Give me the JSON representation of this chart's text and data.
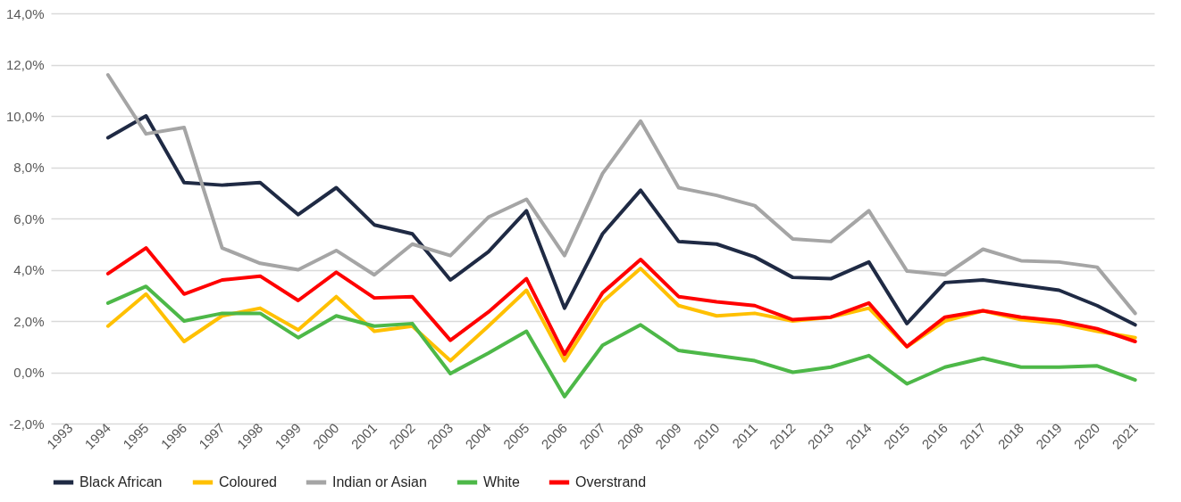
{
  "chart_data": {
    "type": "line",
    "categories": [
      "1993",
      "1994",
      "1995",
      "1996",
      "1997",
      "1998",
      "1999",
      "2000",
      "2001",
      "2002",
      "2003",
      "2004",
      "2005",
      "2006",
      "2007",
      "2008",
      "2009",
      "2010",
      "2011",
      "2012",
      "2013",
      "2014",
      "2015",
      "2016",
      "2017",
      "2018",
      "2019",
      "2020",
      "2021"
    ],
    "series": [
      {
        "name": "Black African",
        "color": "#1f2a44",
        "values": [
          null,
          9.15,
          10.0,
          7.4,
          7.3,
          7.4,
          6.15,
          7.2,
          5.75,
          5.4,
          3.6,
          4.7,
          6.3,
          2.5,
          5.4,
          7.1,
          5.1,
          5.0,
          4.5,
          3.7,
          3.65,
          4.3,
          1.9,
          3.5,
          3.6,
          3.4,
          3.2,
          2.6,
          1.85
        ]
      },
      {
        "name": "Coloured",
        "color": "#ffc000",
        "values": [
          null,
          1.8,
          3.05,
          1.2,
          2.2,
          2.5,
          1.65,
          2.95,
          1.6,
          1.8,
          0.45,
          1.8,
          3.2,
          0.45,
          2.75,
          4.05,
          2.6,
          2.2,
          2.3,
          2.0,
          2.15,
          2.5,
          1.0,
          2.0,
          2.4,
          2.05,
          1.9,
          1.6,
          1.35
        ]
      },
      {
        "name": "Indian or Asian",
        "color": "#a5a5a5",
        "values": [
          null,
          11.6,
          9.3,
          9.55,
          4.85,
          4.25,
          4.0,
          4.75,
          3.8,
          5.0,
          4.55,
          6.05,
          6.75,
          4.55,
          7.75,
          9.8,
          7.2,
          6.9,
          6.5,
          5.2,
          5.1,
          6.3,
          3.95,
          3.8,
          4.8,
          4.35,
          4.3,
          4.1,
          2.3
        ]
      },
      {
        "name": "White",
        "color": "#4db848",
        "values": [
          null,
          2.7,
          3.35,
          2.0,
          2.3,
          2.3,
          1.35,
          2.2,
          1.8,
          1.9,
          -0.05,
          0.75,
          1.6,
          -0.95,
          1.05,
          1.85,
          0.85,
          0.65,
          0.45,
          0.0,
          0.2,
          0.65,
          -0.45,
          0.2,
          0.55,
          0.2,
          0.2,
          0.25,
          -0.3
        ]
      },
      {
        "name": "Overstrand",
        "color": "#ff0000",
        "values": [
          null,
          3.85,
          4.85,
          3.05,
          3.6,
          3.75,
          2.8,
          3.9,
          2.9,
          2.95,
          1.25,
          2.35,
          3.65,
          0.7,
          3.1,
          4.4,
          2.95,
          2.75,
          2.6,
          2.05,
          2.15,
          2.7,
          1.0,
          2.15,
          2.4,
          2.15,
          2.0,
          1.7,
          1.2
        ]
      }
    ],
    "ylim": [
      -2,
      14
    ],
    "yticks": [
      {
        "value": -2,
        "label": "-2,0%"
      },
      {
        "value": 0,
        "label": "0,0%"
      },
      {
        "value": 2,
        "label": "2,0%"
      },
      {
        "value": 4,
        "label": "4,0%"
      },
      {
        "value": 6,
        "label": "6,0%"
      },
      {
        "value": 8,
        "label": "8,0%"
      },
      {
        "value": 10,
        "label": "10,0%"
      },
      {
        "value": 12,
        "label": "12,0%"
      },
      {
        "value": 14,
        "label": "14,0%"
      }
    ],
    "grid": "y",
    "legend": "bottom",
    "line_style": "solid",
    "marker": "none"
  }
}
